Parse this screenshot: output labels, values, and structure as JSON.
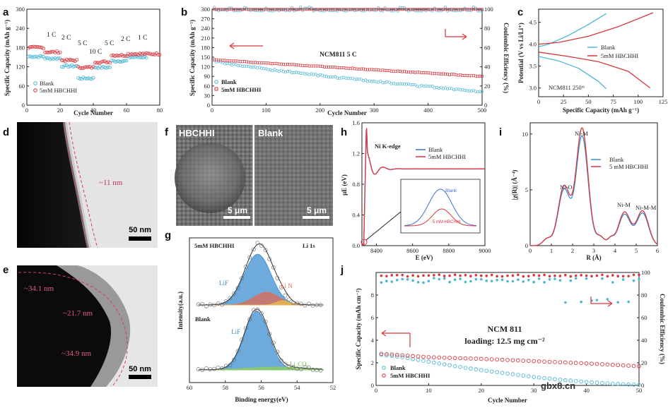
{
  "labels": {
    "a": "a",
    "b": "b",
    "c": "c",
    "d": "d",
    "e": "e",
    "f": "f",
    "g": "g",
    "h": "h",
    "i": "i",
    "j": "j"
  },
  "colors": {
    "blank": "#4bb6d6",
    "hbchhi": "#d9363e",
    "axis": "#222222",
    "xps_fill_blue": "#3d8fd0",
    "xps_fill_red": "#e06a50",
    "xps_fill_green": "#8ccf5a"
  },
  "panel_a": {
    "ylabel": "Specific Capacity (mAh g⁻¹)",
    "xlabel": "Cycle Number",
    "rates": [
      "1 C",
      "2 C",
      "5 C",
      "10 C",
      "5 C",
      "2 C",
      "1 C"
    ],
    "legend": [
      "Blank",
      "5mM HBCHHI"
    ]
  },
  "panel_b": {
    "ylabel_left": "Specific Capacity (mAh g⁻¹)",
    "ylabel_right": "Coulombic Efficiency (%)",
    "xlabel": "Cycle Number",
    "annotation": "NCM811     5 C",
    "legend": [
      "Blank",
      "5mM HBCHHI"
    ]
  },
  "panel_c": {
    "ylabel": "Potential (V vs Li/Li⁺)",
    "xlabel": "Specific Capacity (mAh g⁻¹)",
    "annotation": "NCM811 250ᵗʰ",
    "legend": [
      "Blank",
      "5mM HBCHHI"
    ]
  },
  "panel_d": {
    "thickness": "~11 nm",
    "scalebar": "50 nm"
  },
  "panel_e": {
    "t1": "~34.1 nm",
    "t2": "~21.7 nm",
    "t3": "~34.9 nm",
    "scalebar": "50 nm"
  },
  "panel_f": {
    "left_label": "HBCHHI",
    "right_label": "Blank",
    "scale_left": "5 μm",
    "scale_right": "5 μm"
  },
  "panel_g": {
    "top_title": "5mM HBCHHI",
    "edge": "Li 1s",
    "lif_top": "LiF",
    "lin": "Li N",
    "bottom_title": "Blank",
    "lif_bottom": "LiF",
    "li2co3": "Li₂CO₃",
    "ylabel": "Intensity(a.u.)",
    "xlabel": "Binding energy(eV)"
  },
  "panel_h": {
    "edge": "Ni K-edge",
    "ylabel": "μE (eV)",
    "xlabel": "E (eV)",
    "legend": [
      "Blank",
      "5mM HBCHHI"
    ],
    "inset_blank": "Blank",
    "inset_hb": "5 mM HBCHHI"
  },
  "panel_i": {
    "ylabel": "|χ(R)| (Å⁻⁴)",
    "xlabel": "R (Å)",
    "peaks": [
      "Ni-O",
      "Ni-M",
      "Ni-M",
      "Ni-M-M"
    ],
    "legend": [
      "Blank",
      "5 mM HBCHHI"
    ]
  },
  "panel_j": {
    "ylabel_left": "Specific Capacity (mAh cm⁻²)",
    "ylabel_right": "Coulombic Efficiency (%)",
    "xlabel": "Cycle Number",
    "title": "NCM 811",
    "loading": "loading: 12.5 mg cm⁻²",
    "legend": [
      "Blank",
      "5mM HBCHHI"
    ]
  },
  "watermark": "gbx8.cn",
  "chart_data": [
    {
      "id": "a",
      "type": "scatter",
      "xlabel": "Cycle Number",
      "ylabel": "Specific Capacity (mAh g⁻¹)",
      "xlim": [
        0,
        80
      ],
      "ylim": [
        0,
        300
      ],
      "xticks": [
        0,
        20,
        40,
        60,
        80
      ],
      "yticks": [
        0,
        60,
        120,
        180,
        240,
        300
      ],
      "series": [
        {
          "name": "Blank",
          "segments": [
            [
              1,
              10,
              152
            ],
            [
              11,
              20,
              146
            ],
            [
              21,
              30,
              122
            ],
            [
              31,
              40,
              84
            ],
            [
              41,
              50,
              118
            ],
            [
              51,
              60,
              138
            ],
            [
              61,
              72,
              150
            ]
          ]
        },
        {
          "name": "5mM HBCHHI",
          "segments": [
            [
              1,
              10,
              180
            ],
            [
              11,
              20,
              166
            ],
            [
              21,
              30,
              140
            ],
            [
              31,
              40,
              118
            ],
            [
              41,
              50,
              135
            ],
            [
              51,
              60,
              156
            ],
            [
              61,
              80,
              160
            ]
          ]
        }
      ]
    },
    {
      "id": "b",
      "type": "scatter",
      "xlabel": "Cycle Number",
      "ylabel": "Specific Capacity (mAh g⁻¹)",
      "y2label": "Coulombic Efficiency (%)",
      "xlim": [
        0,
        500
      ],
      "ylim": [
        0,
        300
      ],
      "y2lim": [
        0,
        100
      ],
      "xticks": [
        0,
        100,
        200,
        300,
        400,
        500
      ],
      "yticks": [
        0,
        30,
        60,
        90,
        120,
        150,
        180,
        210,
        240,
        270,
        300
      ],
      "y2ticks": [
        0,
        20,
        40,
        60,
        80,
        100
      ],
      "series": [
        {
          "name": "Blank",
          "start": 140,
          "end": 42
        },
        {
          "name": "5mM HBCHHI",
          "start": 142,
          "end": 90
        },
        {
          "name": "Blank CE",
          "value": 99.5
        },
        {
          "name": "5mM HBCHHI CE",
          "value": 99.8
        }
      ]
    },
    {
      "id": "c",
      "type": "line",
      "xlabel": "Specific Capacity (mAh g⁻¹)",
      "ylabel": "Potential (V vs Li/Li⁺)",
      "xlim": [
        0,
        125
      ],
      "ylim": [
        2.8,
        4.8
      ],
      "xticks": [
        0,
        25,
        50,
        75,
        100,
        125
      ],
      "yticks": [
        3.0,
        3.5,
        4.0,
        4.5
      ],
      "series": [
        {
          "name": "Blank",
          "charge": [
            [
              0,
              3.94
            ],
            [
              10,
              4.0
            ],
            [
              30,
              4.2
            ],
            [
              50,
              4.45
            ],
            [
              68,
              4.7
            ]
          ],
          "discharge": [
            [
              0,
              3.72
            ],
            [
              20,
              3.62
            ],
            [
              40,
              3.45
            ],
            [
              60,
              3.15
            ],
            [
              68,
              2.98
            ]
          ]
        },
        {
          "name": "5mM HBCHHI",
          "charge": [
            [
              0,
              4.0
            ],
            [
              20,
              4.04
            ],
            [
              50,
              4.18
            ],
            [
              80,
              4.4
            ],
            [
              115,
              4.72
            ]
          ],
          "discharge": [
            [
              0,
              3.82
            ],
            [
              30,
              3.72
            ],
            [
              60,
              3.6
            ],
            [
              90,
              3.38
            ],
            [
              112,
              3.0
            ]
          ]
        }
      ]
    },
    {
      "id": "g",
      "type": "line",
      "xlabel": "Binding energy(eV)",
      "ylabel": "Intensity(a.u.)",
      "xlim": [
        60,
        52
      ],
      "xticks": [
        60,
        58,
        56,
        54,
        52
      ],
      "series": [
        {
          "name": "5mM HBCHHI",
          "components": [
            "LiF",
            "Li N"
          ]
        },
        {
          "name": "Blank",
          "components": [
            "LiF",
            "Li₂CO₃"
          ]
        }
      ]
    },
    {
      "id": "h",
      "type": "line",
      "xlabel": "E (eV)",
      "ylabel": "μE (eV)",
      "xlim": [
        8320,
        9000
      ],
      "ylim": [
        0,
        1.6
      ],
      "xticks": [
        8400,
        8600,
        8800,
        9000
      ],
      "yticks": [
        0.0,
        0.4,
        0.8,
        1.2,
        1.6
      ],
      "series": [
        {
          "name": "Blank"
        },
        {
          "name": "5mM HBCHHI"
        }
      ]
    },
    {
      "id": "i",
      "type": "line",
      "xlabel": "R (Å)",
      "ylabel": "|χ(R)| (Å⁻⁴)",
      "xlim": [
        0,
        6
      ],
      "ylim": [
        0,
        11
      ],
      "xticks": [
        0,
        1,
        2,
        3,
        4,
        5,
        6
      ],
      "yticks": [
        0,
        5,
        10
      ],
      "series": [
        {
          "name": "Blank",
          "peaks": [
            [
              1.6,
              5.0
            ],
            [
              2.45,
              9.8
            ],
            [
              4.45,
              2.8
            ],
            [
              5.3,
              2.9
            ]
          ]
        },
        {
          "name": "5 mM HBCHHI",
          "peaks": [
            [
              1.6,
              5.3
            ],
            [
              2.45,
              10.5
            ],
            [
              4.45,
              3.0
            ],
            [
              5.3,
              3.1
            ]
          ]
        }
      ]
    },
    {
      "id": "j",
      "type": "scatter",
      "xlabel": "Cycle Number",
      "ylabel": "Specific Capacity (mAh cm⁻²)",
      "y2label": "Coulombic Efficiency (%)",
      "xlim": [
        0,
        50
      ],
      "ylim": [
        0,
        10
      ],
      "y2lim": [
        0,
        100
      ],
      "xticks": [
        0,
        10,
        20,
        30,
        40,
        50
      ],
      "yticks": [
        0,
        2,
        4,
        6,
        8
      ],
      "y2ticks": [
        0,
        20,
        40,
        60,
        80,
        100
      ],
      "series": [
        {
          "name": "Blank",
          "points": [
            [
              1,
              2.7
            ],
            [
              5,
              2.5
            ],
            [
              10,
              2.1
            ],
            [
              15,
              1.7
            ],
            [
              20,
              1.35
            ],
            [
              25,
              1.05
            ],
            [
              30,
              0.75
            ],
            [
              35,
              0.5
            ],
            [
              40,
              0.3
            ],
            [
              45,
              0.15
            ],
            [
              50,
              0.05
            ]
          ]
        },
        {
          "name": "5mM HBCHHI",
          "points": [
            [
              1,
              2.8
            ],
            [
              10,
              2.5
            ],
            [
              20,
              2.35
            ],
            [
              30,
              2.15
            ],
            [
              40,
              1.95
            ],
            [
              50,
              1.7
            ]
          ]
        },
        {
          "name": "Blank CE",
          "value": 95
        },
        {
          "name": "5mM HBCHHI CE",
          "value": 98
        }
      ]
    }
  ]
}
